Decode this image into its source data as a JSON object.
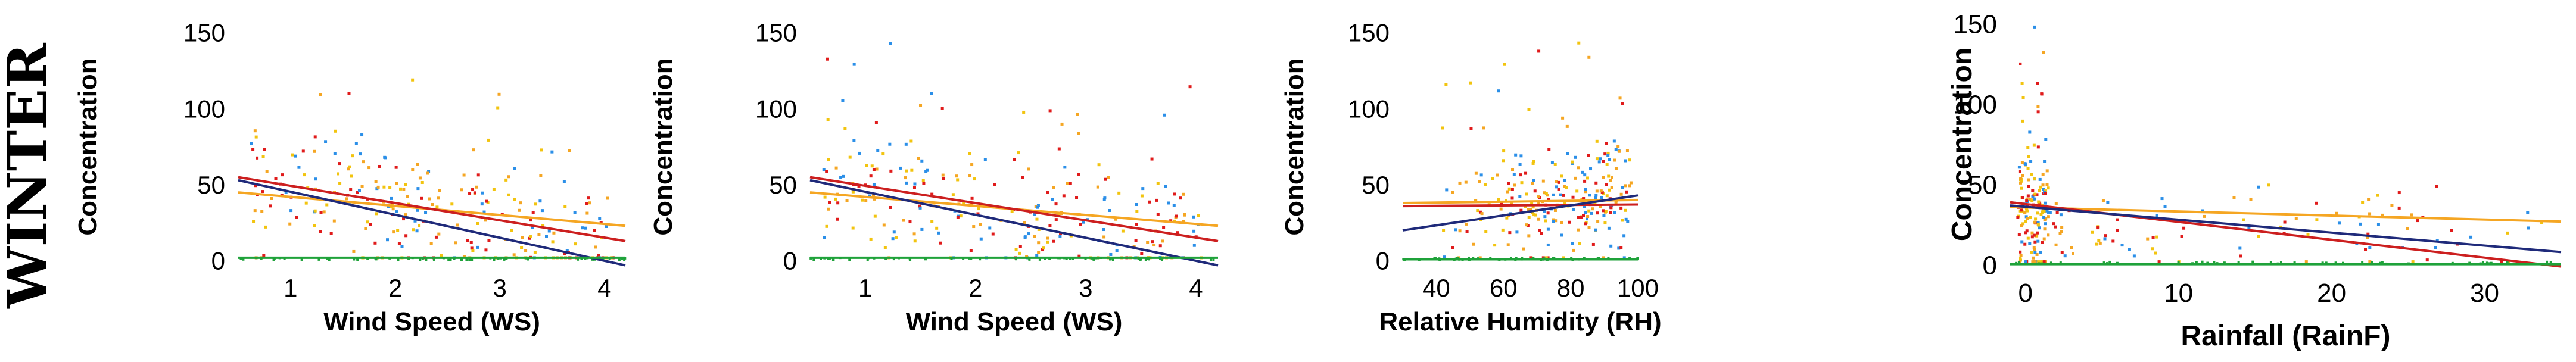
{
  "season_label": "WINTER",
  "colors": {
    "orange": "#f5a623",
    "red": "#cc1f1f",
    "navy": "#1f2a7a",
    "green": "#1fa23a",
    "blue": "#2b8fe8",
    "yellow": "#f2c40f",
    "points_red": "#e01b1b"
  },
  "chart_data": [
    {
      "type": "scatter",
      "title": "",
      "xlabel": "Wind Speed (WS)",
      "ylabel": "Concentration",
      "xlim": [
        0.5,
        4.2
      ],
      "ylim": [
        0,
        150
      ],
      "xticks": [
        1,
        2,
        3,
        4
      ],
      "yticks": [
        0,
        50,
        100,
        150
      ],
      "trend_lines": [
        {
          "name": "orange",
          "x": [
            0.5,
            4.2
          ],
          "y": [
            45,
            23
          ]
        },
        {
          "name": "red",
          "x": [
            0.5,
            4.2
          ],
          "y": [
            55,
            13
          ]
        },
        {
          "name": "navy",
          "x": [
            0.5,
            4.2
          ],
          "y": [
            53,
            -3
          ]
        },
        {
          "name": "green",
          "x": [
            0.5,
            4.2
          ],
          "y": [
            2,
            2
          ]
        }
      ]
    },
    {
      "type": "scatter",
      "title": "",
      "xlabel": "Wind Speed (WS)",
      "ylabel": "Concentration",
      "xlim": [
        0.5,
        4.2
      ],
      "ylim": [
        0,
        150
      ],
      "xticks": [
        1,
        2,
        3,
        4
      ],
      "yticks": [
        0,
        50,
        100,
        150
      ],
      "trend_lines": [
        {
          "name": "orange",
          "x": [
            0.5,
            4.2
          ],
          "y": [
            45,
            23
          ]
        },
        {
          "name": "red",
          "x": [
            0.5,
            4.2
          ],
          "y": [
            55,
            13
          ]
        },
        {
          "name": "navy",
          "x": [
            0.5,
            4.2
          ],
          "y": [
            53,
            -3
          ]
        },
        {
          "name": "green",
          "x": [
            0.5,
            4.2
          ],
          "y": [
            2,
            2
          ]
        }
      ]
    },
    {
      "type": "scatter",
      "title": "",
      "xlabel": "Relative Humidity (RH)",
      "ylabel": "Concentration",
      "xlim": [
        30,
        100
      ],
      "ylim": [
        0,
        150
      ],
      "xticks": [
        40,
        60,
        80,
        100
      ],
      "yticks": [
        0,
        50,
        100,
        150
      ],
      "trend_lines": [
        {
          "name": "orange",
          "x": [
            30,
            100
          ],
          "y": [
            38,
            40
          ]
        },
        {
          "name": "red",
          "x": [
            30,
            100
          ],
          "y": [
            36,
            37
          ]
        },
        {
          "name": "navy",
          "x": [
            30,
            100
          ],
          "y": [
            20,
            43
          ]
        },
        {
          "name": "green",
          "x": [
            30,
            100
          ],
          "y": [
            1,
            1
          ]
        }
      ]
    },
    {
      "type": "scatter",
      "title": "",
      "xlabel": "Rainfall (RainF)",
      "ylabel": "Concentration",
      "xlim": [
        -1,
        35
      ],
      "ylim": [
        0,
        150
      ],
      "xticks": [
        0,
        10,
        20,
        30
      ],
      "yticks": [
        0,
        50,
        100,
        150
      ],
      "trend_lines": [
        {
          "name": "orange",
          "x": [
            -1,
            35
          ],
          "y": [
            36,
            27
          ]
        },
        {
          "name": "red",
          "x": [
            -1,
            35
          ],
          "y": [
            39,
            -1
          ]
        },
        {
          "name": "navy",
          "x": [
            -1,
            35
          ],
          "y": [
            37,
            8
          ]
        },
        {
          "name": "green",
          "x": [
            -1,
            35
          ],
          "y": [
            0.5,
            0.5
          ]
        }
      ]
    }
  ]
}
